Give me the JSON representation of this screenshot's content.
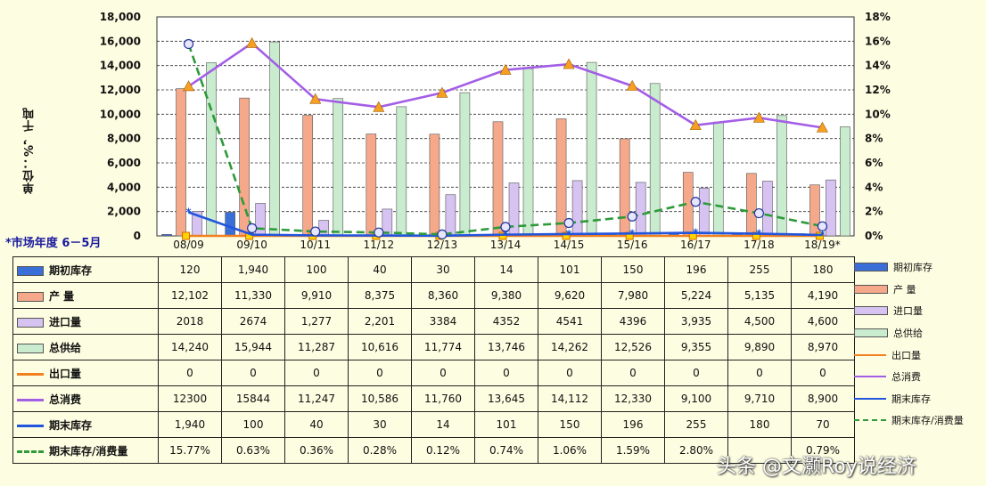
{
  "chart_data": {
    "type": "bar",
    "y_axis_label": "单位：%，千吨",
    "x_axis_label": "*市场年度 6－5月",
    "categories": [
      "08/09",
      "09/10",
      "10/11",
      "11/12",
      "12/13",
      "13/14",
      "14/15",
      "15/16",
      "16/17",
      "17/18",
      "18/19*"
    ],
    "ylim_left": [
      0,
      18000
    ],
    "ylim_right": [
      0,
      18
    ],
    "left_ticks": [
      "18,000",
      "16,000",
      "14,000",
      "12,000",
      "10,000",
      "8,000",
      "6,000",
      "4,000",
      "2,000",
      "0"
    ],
    "right_ticks": [
      "18%",
      "16%",
      "14%",
      "12%",
      "10%",
      "8%",
      "6%",
      "4%",
      "2%",
      "0%"
    ],
    "grid": true,
    "legend_position": "right",
    "series": [
      {
        "key": "s1",
        "name": "期初库存",
        "legend": "期初库存",
        "kind": "bar",
        "color": "#3a6fd8",
        "values": [
          120,
          1940,
          100,
          40,
          30,
          14,
          101,
          150,
          196,
          255,
          180
        ],
        "labels": [
          "120",
          "1,940",
          "100",
          "40",
          "30",
          "14",
          "101",
          "150",
          "196",
          "255",
          "180"
        ]
      },
      {
        "key": "s2",
        "name": "产 量",
        "legend": "产 量",
        "kind": "bar",
        "color": "#f5a98a",
        "values": [
          12102,
          11330,
          9910,
          8375,
          8360,
          9380,
          9620,
          7980,
          5224,
          5135,
          4190
        ],
        "labels": [
          "12,102",
          "11,330",
          "9,910",
          "8,375",
          "8,360",
          "9,380",
          "9,620",
          "7,980",
          "5,224",
          "5,135",
          "4,190"
        ]
      },
      {
        "key": "s3",
        "name": "进口量",
        "legend": "进口量",
        "kind": "bar",
        "color": "#d6c3f2",
        "values": [
          2018,
          2674,
          1277,
          2201,
          3384,
          4352,
          4541,
          4396,
          3935,
          4500,
          4600
        ],
        "labels": [
          "2018",
          "2674",
          "1,277",
          "2,201",
          "3384",
          "4352",
          "4541",
          "4396",
          "3,935",
          "4,500",
          "4,600"
        ]
      },
      {
        "key": "s4",
        "name": "总供给",
        "legend": "总供给",
        "kind": "bar",
        "color": "#c9eccf",
        "values": [
          14240,
          15944,
          11287,
          10616,
          11774,
          13746,
          14262,
          12526,
          9355,
          9890,
          8970
        ],
        "labels": [
          "14,240",
          "15,944",
          "11,287",
          "10,616",
          "11,774",
          "13,746",
          "14,262",
          "12,526",
          "9,355",
          "9,890",
          "8,970"
        ]
      },
      {
        "key": "s5",
        "name": "出口量",
        "legend": "出口量",
        "kind": "line",
        "color": "#f08020",
        "values": [
          0,
          0,
          0,
          0,
          0,
          0,
          0,
          0,
          0,
          0,
          0
        ],
        "labels": [
          "0",
          "0",
          "0",
          "0",
          "0",
          "0",
          "0",
          "0",
          "0",
          "0",
          "0"
        ]
      },
      {
        "key": "s6",
        "name": "总消费",
        "legend": "总消费",
        "kind": "line",
        "color": "#a35ee6",
        "values": [
          12300,
          15844,
          11247,
          10586,
          11760,
          13645,
          14112,
          12330,
          9100,
          9710,
          8900
        ],
        "labels": [
          "12300",
          "15844",
          "11,247",
          "10,586",
          "11,760",
          "13,645",
          "14,112",
          "12,330",
          "9,100",
          "9,710",
          "8,900"
        ]
      },
      {
        "key": "s7",
        "name": "期末库存",
        "legend": "期末库存",
        "kind": "line",
        "color": "#2255dd",
        "values": [
          1940,
          100,
          40,
          30,
          14,
          101,
          150,
          196,
          255,
          180,
          70
        ],
        "labels": [
          "1,940",
          "100",
          "40",
          "30",
          "14",
          "101",
          "150",
          "196",
          "255",
          "180",
          "70"
        ]
      },
      {
        "key": "s8",
        "name": "期末库存/消费量",
        "legend": "期末库存/消费量",
        "kind": "dashed",
        "color": "#2e9a3a",
        "axis": "right",
        "values": [
          15.77,
          0.63,
          0.36,
          0.28,
          0.12,
          0.74,
          1.06,
          1.59,
          2.8,
          1.86,
          0.79
        ],
        "labels": [
          "15.77%",
          "0.63%",
          "0.36%",
          "0.28%",
          "0.12%",
          "0.74%",
          "1.06%",
          "1.59%",
          "2.80%",
          "",
          "0.79%"
        ]
      }
    ]
  },
  "watermark": "头条 @文灏Roy说经济"
}
